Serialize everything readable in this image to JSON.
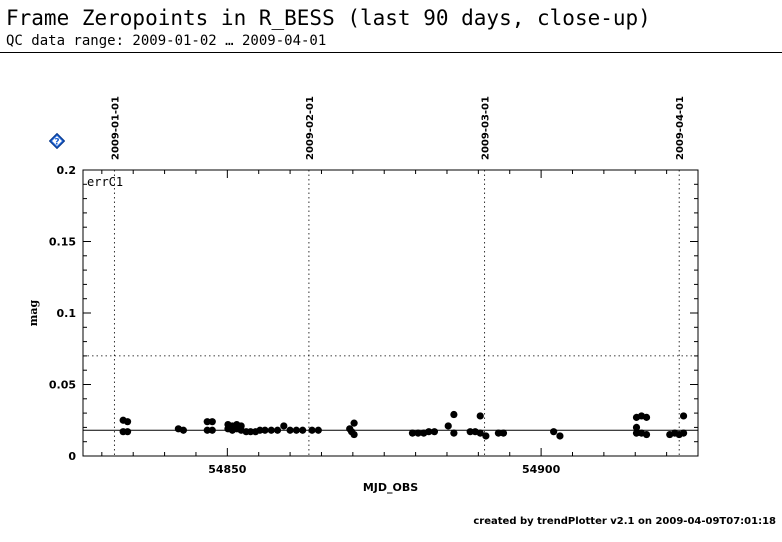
{
  "header": {
    "title": "Frame Zeropoints in R_BESS (last 90 days, close-up)",
    "subtitle": "QC data range: 2009-01-02 … 2009-04-01"
  },
  "footer": {
    "credit": "created by trendPlotter v2.1 on 2009-04-09T07:01:18"
  },
  "help_icon": {
    "icon": "help-diamond-icon",
    "label": "?",
    "color": "#1a5fd0"
  },
  "chart_data": {
    "type": "scatter",
    "title": "",
    "panel_label": "errC1",
    "xlabel": "MJD_OBS",
    "ylabel": "mag",
    "xlim": [
      54827,
      54925
    ],
    "ylim": [
      0,
      0.2
    ],
    "x_ticks": [
      54850,
      54900
    ],
    "y_ticks": [
      0,
      0.05,
      0.1,
      0.15,
      0.2
    ],
    "y_tick_labels": [
      "0",
      "0.05",
      "0.1",
      "0.15",
      "0.2"
    ],
    "date_markers": [
      {
        "label": "2009-01-01",
        "x": 54832
      },
      {
        "label": "2009-02-01",
        "x": 54863
      },
      {
        "label": "2009-03-01",
        "x": 54891
      },
      {
        "label": "2009-04-01",
        "x": 54922
      }
    ],
    "reference_lines": [
      {
        "kind": "solid",
        "y": 0.018
      },
      {
        "kind": "dotted",
        "y": 0.07
      }
    ],
    "points": [
      {
        "x": 54833.4,
        "y": 0.025
      },
      {
        "x": 54833.4,
        "y": 0.017
      },
      {
        "x": 54834.1,
        "y": 0.024
      },
      {
        "x": 54834.1,
        "y": 0.017
      },
      {
        "x": 54842.2,
        "y": 0.019
      },
      {
        "x": 54843.0,
        "y": 0.018
      },
      {
        "x": 54846.8,
        "y": 0.024
      },
      {
        "x": 54846.8,
        "y": 0.018
      },
      {
        "x": 54847.6,
        "y": 0.024
      },
      {
        "x": 54847.6,
        "y": 0.018
      },
      {
        "x": 54850.1,
        "y": 0.022
      },
      {
        "x": 54850.1,
        "y": 0.019
      },
      {
        "x": 54850.8,
        "y": 0.021
      },
      {
        "x": 54850.8,
        "y": 0.018
      },
      {
        "x": 54851.5,
        "y": 0.022
      },
      {
        "x": 54851.5,
        "y": 0.019
      },
      {
        "x": 54852.2,
        "y": 0.021
      },
      {
        "x": 54852.2,
        "y": 0.018
      },
      {
        "x": 54853.0,
        "y": 0.017
      },
      {
        "x": 54853.7,
        "y": 0.017
      },
      {
        "x": 54854.5,
        "y": 0.017
      },
      {
        "x": 54855.2,
        "y": 0.018
      },
      {
        "x": 54856.0,
        "y": 0.018
      },
      {
        "x": 54857.0,
        "y": 0.018
      },
      {
        "x": 54858.0,
        "y": 0.018
      },
      {
        "x": 54859.0,
        "y": 0.021
      },
      {
        "x": 54860.0,
        "y": 0.018
      },
      {
        "x": 54861.0,
        "y": 0.018
      },
      {
        "x": 54862.0,
        "y": 0.018
      },
      {
        "x": 54863.5,
        "y": 0.018
      },
      {
        "x": 54864.5,
        "y": 0.018
      },
      {
        "x": 54869.5,
        "y": 0.019
      },
      {
        "x": 54870.2,
        "y": 0.023
      },
      {
        "x": 54870.2,
        "y": 0.015
      },
      {
        "x": 54869.8,
        "y": 0.017
      },
      {
        "x": 54879.5,
        "y": 0.016
      },
      {
        "x": 54880.4,
        "y": 0.016
      },
      {
        "x": 54881.3,
        "y": 0.016
      },
      {
        "x": 54882.1,
        "y": 0.017
      },
      {
        "x": 54883.0,
        "y": 0.017
      },
      {
        "x": 54885.2,
        "y": 0.021
      },
      {
        "x": 54886.1,
        "y": 0.029
      },
      {
        "x": 54886.1,
        "y": 0.016
      },
      {
        "x": 54888.7,
        "y": 0.017
      },
      {
        "x": 54889.5,
        "y": 0.017
      },
      {
        "x": 54890.3,
        "y": 0.028
      },
      {
        "x": 54890.3,
        "y": 0.016
      },
      {
        "x": 54891.2,
        "y": 0.014
      },
      {
        "x": 54893.2,
        "y": 0.016
      },
      {
        "x": 54894.0,
        "y": 0.016
      },
      {
        "x": 54902.0,
        "y": 0.017
      },
      {
        "x": 54903.0,
        "y": 0.014
      },
      {
        "x": 54915.2,
        "y": 0.027
      },
      {
        "x": 54915.2,
        "y": 0.02
      },
      {
        "x": 54915.2,
        "y": 0.016
      },
      {
        "x": 54916.0,
        "y": 0.028
      },
      {
        "x": 54916.0,
        "y": 0.016
      },
      {
        "x": 54916.8,
        "y": 0.027
      },
      {
        "x": 54916.8,
        "y": 0.015
      },
      {
        "x": 54920.5,
        "y": 0.015
      },
      {
        "x": 54921.3,
        "y": 0.016
      },
      {
        "x": 54922.0,
        "y": 0.015
      },
      {
        "x": 54922.7,
        "y": 0.028
      },
      {
        "x": 54922.7,
        "y": 0.016
      }
    ]
  }
}
